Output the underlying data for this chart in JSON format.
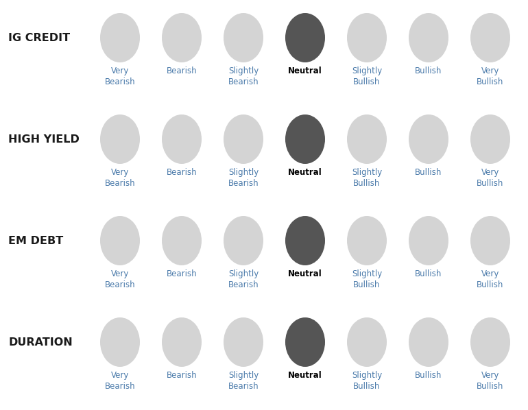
{
  "rows": [
    {
      "label": "IG CREDIT",
      "selected": 3
    },
    {
      "label": "HIGH YIELD",
      "selected": 3
    },
    {
      "label": "EM DEBT",
      "selected": 3
    },
    {
      "label": "DURATION",
      "selected": 3
    }
  ],
  "columns": [
    {
      "line1": "Very",
      "line2": "Bearish"
    },
    {
      "line1": "Bearish",
      "line2": ""
    },
    {
      "line1": "Slightly",
      "line2": "Bearish"
    },
    {
      "line1": "Neutral",
      "line2": ""
    },
    {
      "line1": "Slightly",
      "line2": "Bullish"
    },
    {
      "line1": "Bullish",
      "line2": ""
    },
    {
      "line1": "Very",
      "line2": "Bullish"
    }
  ],
  "circle_color_inactive": "#d4d4d4",
  "circle_color_active": "#555555",
  "label_color_inactive": "#4a7aaa",
  "label_color_active": "#000000",
  "row_label_color": "#1a1a1a",
  "background_color": "#ffffff",
  "fig_width": 7.7,
  "fig_height": 5.98,
  "dpi": 100
}
